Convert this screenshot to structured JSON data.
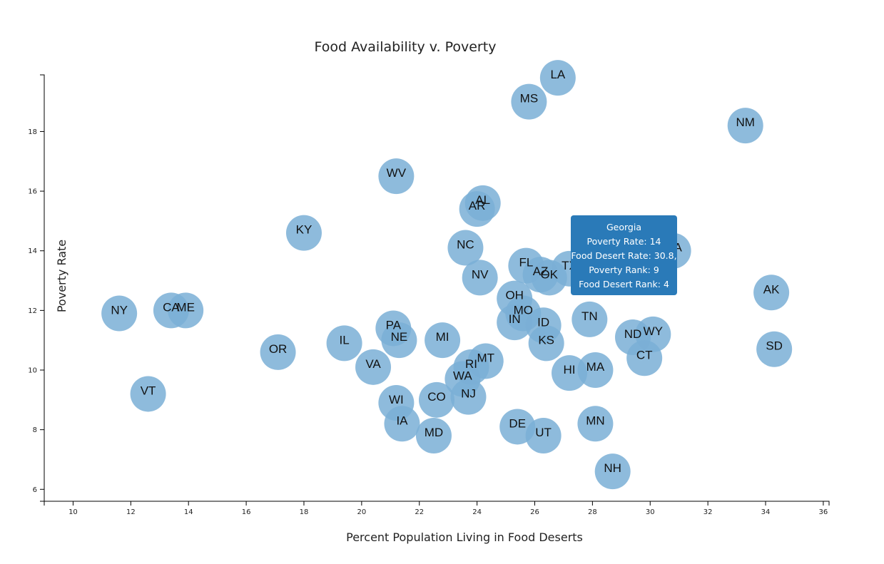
{
  "chart_data": {
    "type": "scatter",
    "title": "Food Availability v. Poverty",
    "xlabel": "Percent Population Living in Food Deserts",
    "ylabel": "Poverty Rate",
    "xlim": [
      9,
      36.2
    ],
    "ylim": [
      5.6,
      19.9
    ],
    "xticks": [
      10,
      12,
      14,
      16,
      18,
      20,
      22,
      24,
      26,
      28,
      30,
      32,
      34,
      36
    ],
    "yticks": [
      6,
      8,
      10,
      12,
      14,
      16,
      18
    ],
    "marker_color": "#7aafd6",
    "points": [
      {
        "label": "LA",
        "x": 26.8,
        "y": 19.8
      },
      {
        "label": "MS",
        "x": 25.8,
        "y": 19.0
      },
      {
        "label": "NM",
        "x": 33.3,
        "y": 18.2
      },
      {
        "label": "WV",
        "x": 21.2,
        "y": 16.5
      },
      {
        "label": "AL",
        "x": 24.2,
        "y": 15.6
      },
      {
        "label": "AR",
        "x": 24.0,
        "y": 15.4
      },
      {
        "label": "KY",
        "x": 18.0,
        "y": 14.6
      },
      {
        "label": "NC",
        "x": 23.6,
        "y": 14.1
      },
      {
        "label": "GA",
        "x": 30.8,
        "y": 14.0
      },
      {
        "label": "FL",
        "x": 25.7,
        "y": 13.5
      },
      {
        "label": "TX",
        "x": 27.2,
        "y": 13.4
      },
      {
        "label": "AZ",
        "x": 26.2,
        "y": 13.2
      },
      {
        "label": "OK",
        "x": 26.5,
        "y": 13.1
      },
      {
        "label": "NV",
        "x": 24.1,
        "y": 13.1
      },
      {
        "label": "AK",
        "x": 34.2,
        "y": 12.6
      },
      {
        "label": "OH",
        "x": 25.3,
        "y": 12.4
      },
      {
        "label": "MO",
        "x": 25.6,
        "y": 11.9
      },
      {
        "label": "NY",
        "x": 11.6,
        "y": 11.9
      },
      {
        "label": "CA",
        "x": 13.4,
        "y": 12.0
      },
      {
        "label": "ME",
        "x": 13.9,
        "y": 12.0
      },
      {
        "label": "TN",
        "x": 27.9,
        "y": 11.7
      },
      {
        "label": "IN",
        "x": 25.3,
        "y": 11.6
      },
      {
        "label": "ID",
        "x": 26.3,
        "y": 11.5
      },
      {
        "label": "PA",
        "x": 21.1,
        "y": 11.4
      },
      {
        "label": "WY",
        "x": 30.1,
        "y": 11.2
      },
      {
        "label": "ND",
        "x": 29.4,
        "y": 11.1
      },
      {
        "label": "NE",
        "x": 21.3,
        "y": 11.0
      },
      {
        "label": "MI",
        "x": 22.8,
        "y": 11.0
      },
      {
        "label": "IL",
        "x": 19.4,
        "y": 10.9
      },
      {
        "label": "KS",
        "x": 26.4,
        "y": 10.9
      },
      {
        "label": "SD",
        "x": 34.3,
        "y": 10.7
      },
      {
        "label": "OR",
        "x": 17.1,
        "y": 10.6
      },
      {
        "label": "CT",
        "x": 29.8,
        "y": 10.4
      },
      {
        "label": "MT",
        "x": 24.3,
        "y": 10.3
      },
      {
        "label": "VA",
        "x": 20.4,
        "y": 10.1
      },
      {
        "label": "RI",
        "x": 23.8,
        "y": 10.1
      },
      {
        "label": "MA",
        "x": 28.1,
        "y": 10.0
      },
      {
        "label": "HI",
        "x": 27.2,
        "y": 9.9
      },
      {
        "label": "WA",
        "x": 23.5,
        "y": 9.7
      },
      {
        "label": "VT",
        "x": 12.6,
        "y": 9.2
      },
      {
        "label": "NJ",
        "x": 23.7,
        "y": 9.1
      },
      {
        "label": "CO",
        "x": 22.6,
        "y": 9.0
      },
      {
        "label": "WI",
        "x": 21.2,
        "y": 8.9
      },
      {
        "label": "IA",
        "x": 21.4,
        "y": 8.2
      },
      {
        "label": "MN",
        "x": 28.1,
        "y": 8.2
      },
      {
        "label": "DE",
        "x": 25.4,
        "y": 8.1
      },
      {
        "label": "UT",
        "x": 26.3,
        "y": 7.8
      },
      {
        "label": "MD",
        "x": 22.5,
        "y": 7.8
      },
      {
        "label": "NH",
        "x": 28.7,
        "y": 6.6
      }
    ]
  },
  "tooltip": {
    "state": "Georgia",
    "poverty_rate": "Poverty Rate: 14",
    "food_desert_rate": "Food Desert Rate: 30.8,",
    "poverty_rank": "Poverty Rank: 9",
    "food_desert_rank": "Food Desert Rank: 4",
    "background": "#2a7ab8"
  }
}
